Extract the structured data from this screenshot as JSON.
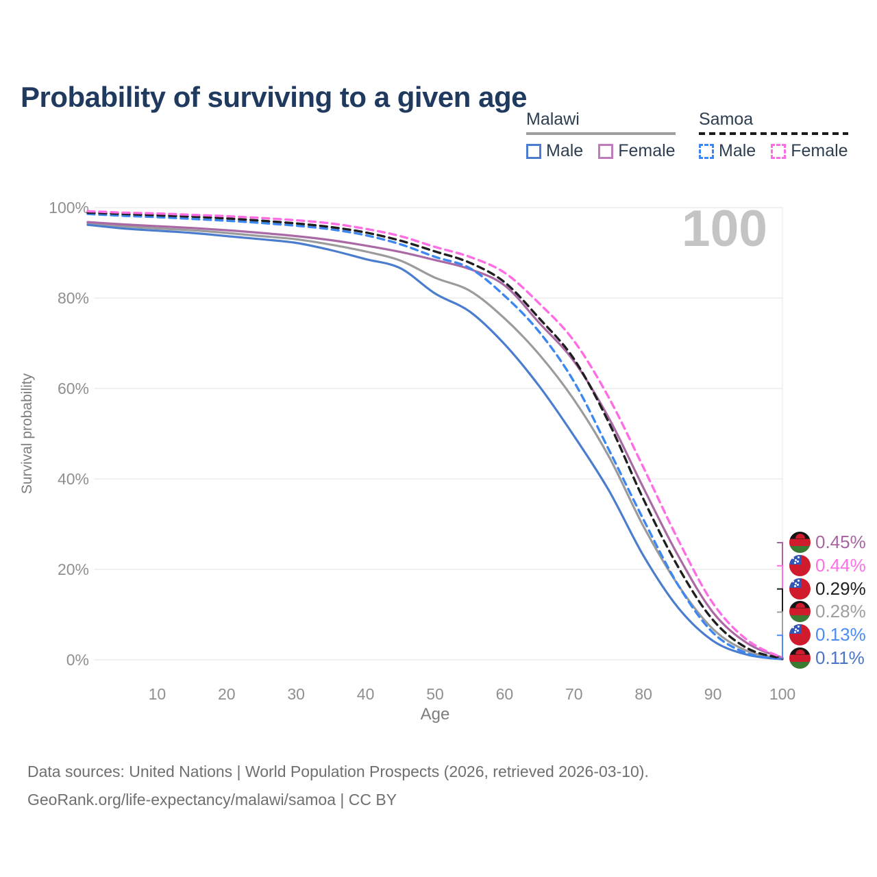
{
  "title": "Probability of surviving to a given age",
  "watermark_age": "100",
  "legend": {
    "groups": [
      {
        "country": "Malawi",
        "line_style": "solid",
        "underline_color": "#9e9e9e",
        "items": [
          {
            "label": "Male",
            "color": "#4a7dce"
          },
          {
            "label": "Female",
            "color": "#bf7cba"
          }
        ]
      },
      {
        "country": "Samoa",
        "line_style": "dashed",
        "underline_color": "#1a1a1a",
        "items": [
          {
            "label": "Male",
            "color": "#3d87f0"
          },
          {
            "label": "Female",
            "color": "#ff6de5"
          }
        ]
      }
    ]
  },
  "chart_data": {
    "type": "line",
    "title": "Probability of surviving to a given age",
    "xlabel": "Age",
    "ylabel": "Survival probability",
    "xlim": [
      0,
      100
    ],
    "ylim": [
      0,
      100
    ],
    "grid": "horizontal",
    "highlighted_age": 100,
    "x_ticks": [
      10,
      20,
      30,
      40,
      50,
      60,
      70,
      80,
      90,
      100
    ],
    "y_ticks": [
      {
        "label": "0%",
        "value": 0
      },
      {
        "label": "20%",
        "value": 20
      },
      {
        "label": "40%",
        "value": 40
      },
      {
        "label": "60%",
        "value": 60
      },
      {
        "label": "80%",
        "value": 80
      },
      {
        "label": "100%",
        "value": 100
      }
    ],
    "ages": [
      0,
      5,
      10,
      15,
      20,
      25,
      30,
      35,
      40,
      45,
      50,
      55,
      60,
      65,
      70,
      75,
      80,
      85,
      90,
      95,
      100
    ],
    "series": [
      {
        "name": "Malawi (country line)",
        "country": "Malawi",
        "style": "solid",
        "color": "#9b9b9b",
        "values": [
          96.5,
          95.9,
          95.4,
          95.0,
          94.4,
          93.7,
          93.0,
          91.8,
          90.3,
          88.3,
          84.5,
          81.6,
          75.5,
          67.5,
          57.5,
          45.0,
          29.5,
          16.5,
          6.8,
          1.9,
          0.28
        ]
      },
      {
        "name": "Malawi male",
        "country": "Malawi",
        "style": "solid",
        "color": "#4a7dce",
        "values": [
          96.2,
          95.4,
          94.9,
          94.4,
          93.7,
          93.0,
          92.2,
          90.6,
          88.6,
          86.6,
          81.0,
          77.0,
          69.8,
          60.5,
          49.5,
          37.5,
          23.0,
          11.5,
          4.2,
          1.1,
          0.11
        ]
      },
      {
        "name": "Malawi female",
        "country": "Malawi",
        "style": "solid",
        "color": "#aa68a5",
        "values": [
          96.8,
          96.3,
          95.9,
          95.5,
          95.0,
          94.4,
          93.7,
          92.8,
          91.6,
          90.2,
          88.4,
          86.4,
          82.8,
          74.5,
          66.0,
          53.5,
          38.0,
          23.0,
          10.5,
          3.6,
          0.45
        ]
      },
      {
        "name": "Samoa male",
        "country": "Samoa",
        "style": "dashed",
        "color": "#3d87f0",
        "values": [
          98.6,
          98.2,
          97.9,
          97.5,
          97.1,
          96.6,
          96.0,
          95.2,
          93.9,
          91.9,
          89.1,
          86.6,
          80.5,
          72.5,
          61.5,
          46.5,
          31.0,
          16.5,
          6.0,
          1.4,
          0.13
        ]
      },
      {
        "name": "Samoa (country line)",
        "country": "Samoa",
        "style": "dashed",
        "color": "#1f1f1f",
        "values": [
          98.9,
          98.6,
          98.3,
          98.0,
          97.6,
          97.1,
          96.5,
          95.7,
          94.5,
          92.7,
          90.3,
          87.8,
          83.5,
          75.5,
          66.5,
          52.5,
          35.5,
          20.5,
          8.8,
          2.5,
          0.29
        ]
      },
      {
        "name": "Samoa female",
        "country": "Samoa",
        "style": "dashed",
        "color": "#ff6de5",
        "values": [
          99.2,
          98.9,
          98.7,
          98.4,
          98.1,
          97.7,
          97.2,
          96.5,
          95.3,
          93.7,
          91.3,
          89.1,
          85.6,
          78.8,
          70.5,
          58.0,
          42.5,
          26.5,
          12.5,
          4.3,
          0.44
        ]
      }
    ],
    "end_labels": [
      {
        "flag": "malawi",
        "series": "Malawi female",
        "value_label": "0.45%",
        "color": "#a765a0"
      },
      {
        "flag": "samoa",
        "series": "Samoa female",
        "value_label": "0.44%",
        "color": "#ff70e6"
      },
      {
        "flag": "samoa",
        "series": "Samoa (country line)",
        "value_label": "0.29%",
        "color": "#1f1f1f"
      },
      {
        "flag": "malawi",
        "series": "Malawi (country line)",
        "value_label": "0.28%",
        "color": "#9e9e9e"
      },
      {
        "flag": "samoa",
        "series": "Samoa male",
        "value_label": "0.13%",
        "color": "#4a8cf2"
      },
      {
        "flag": "malawi",
        "series": "Malawi male",
        "value_label": "0.11%",
        "color": "#4a74c4"
      }
    ]
  },
  "footer": {
    "line1": "Data sources: United Nations | World Population Prospects (2026, retrieved 2026-03-10).",
    "line2": "GeoRank.org/life-expectancy/malawi/samoa | CC BY"
  }
}
